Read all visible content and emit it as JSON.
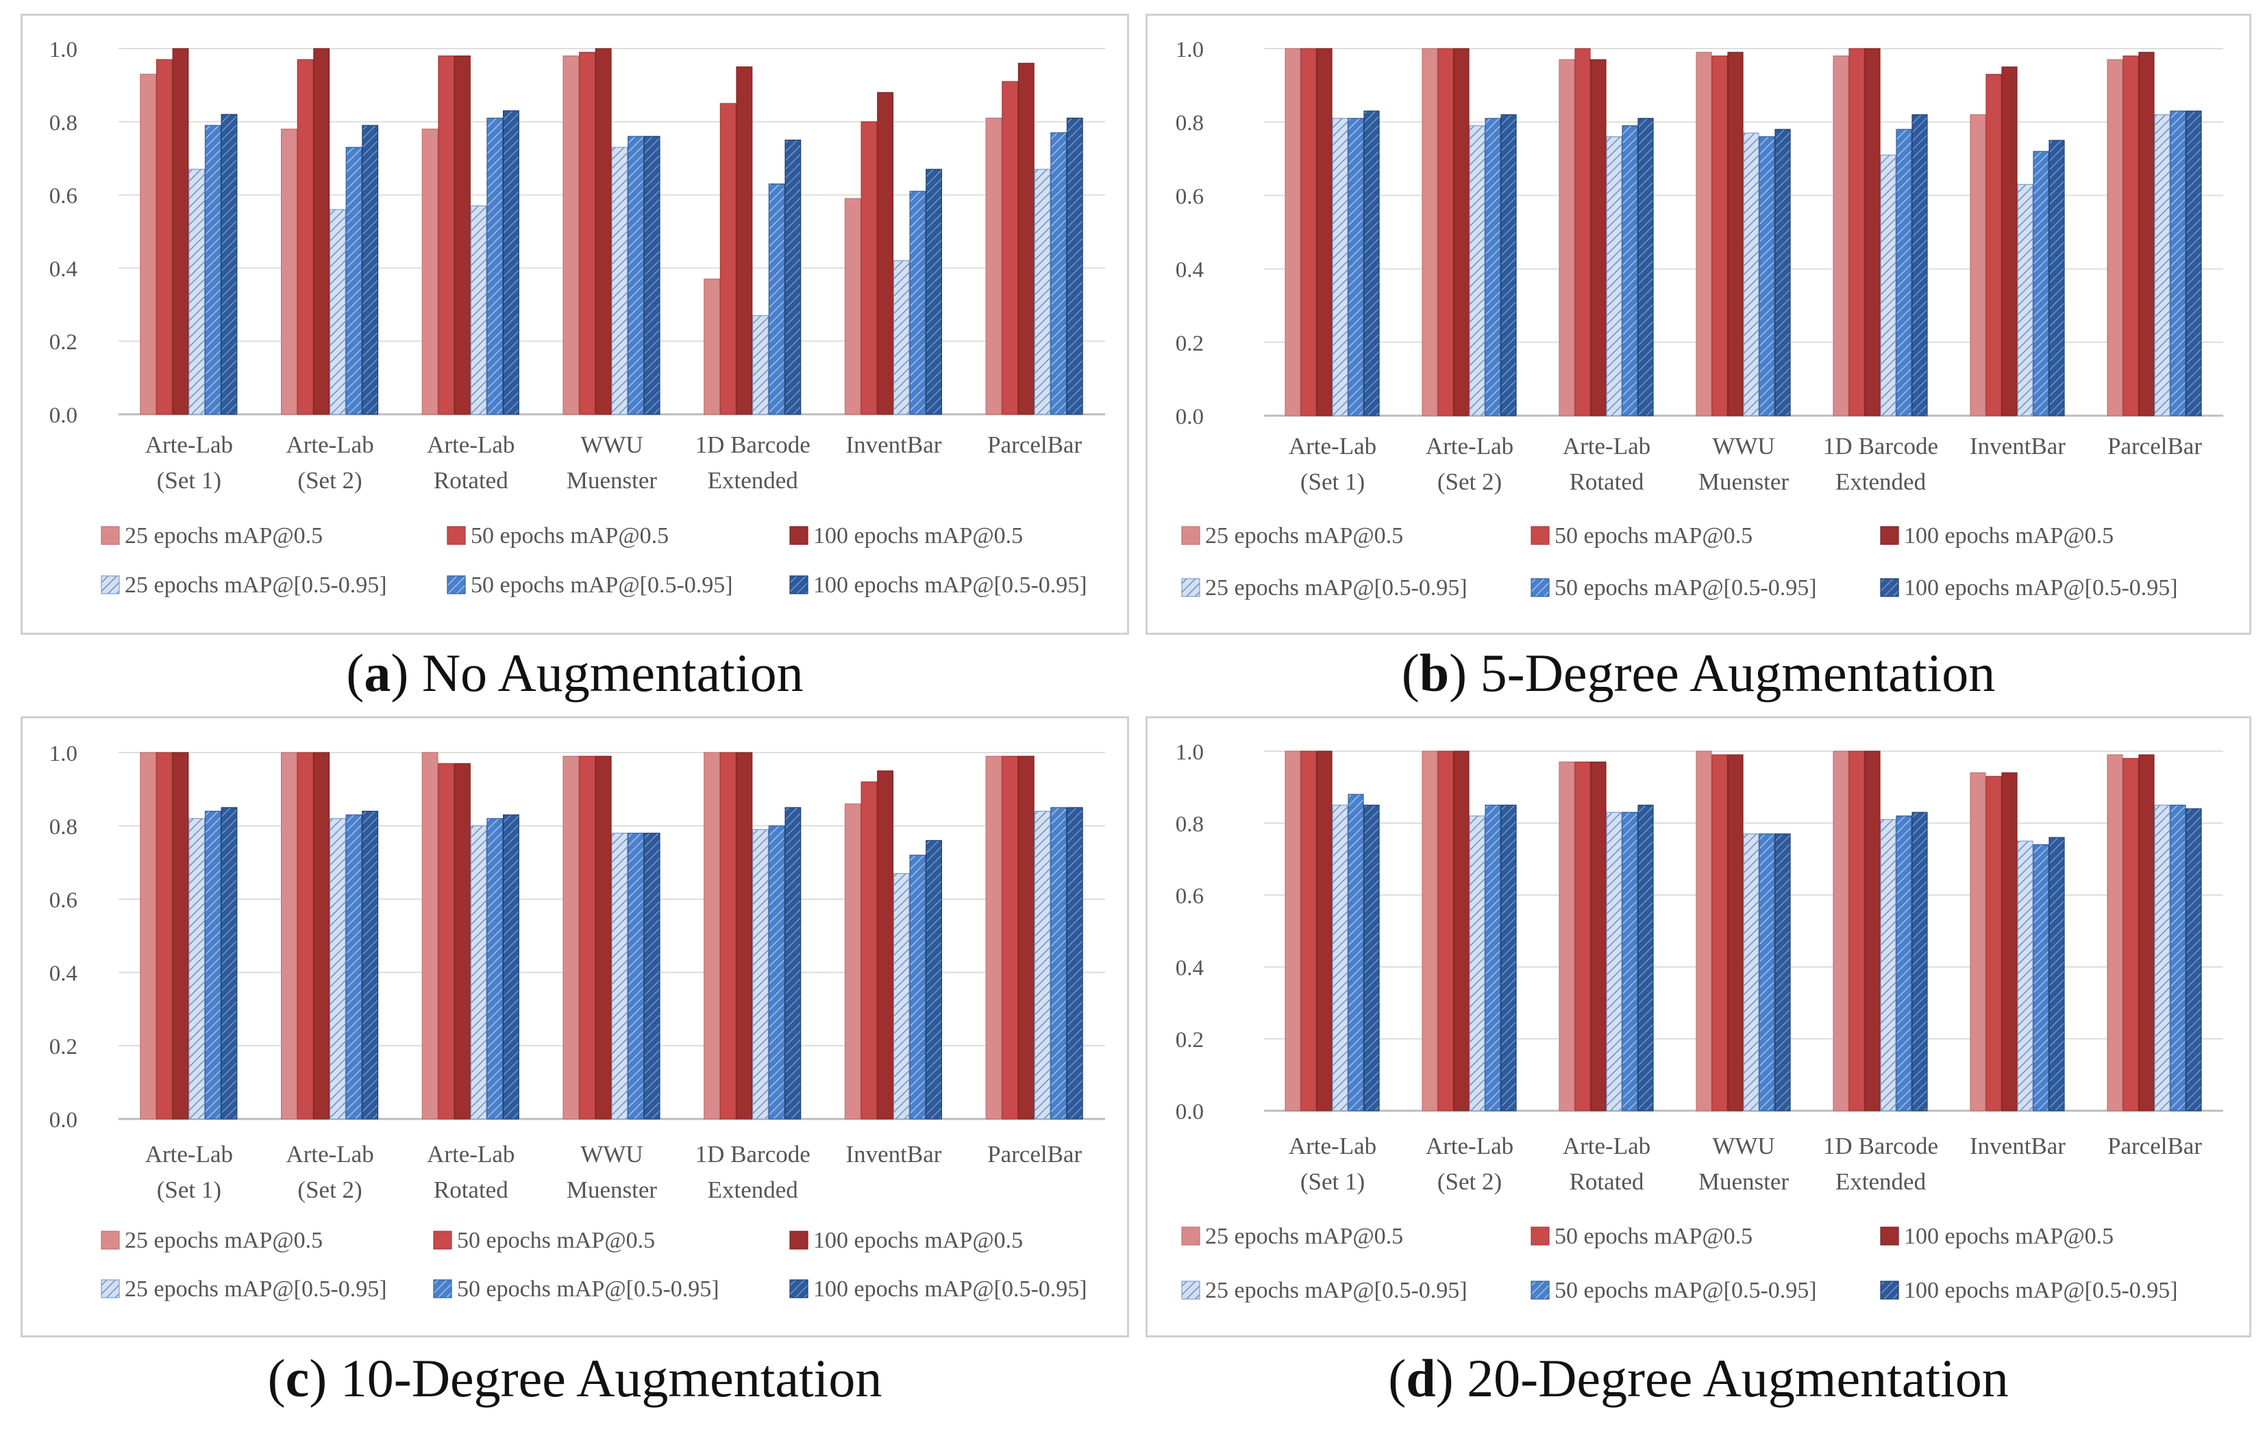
{
  "colors": {
    "s25_05": "#D98B8B",
    "s50_05": "#C84A4A",
    "s100_05": "#9E2F2F",
    "s25_095": "#BCD0EC",
    "s50_095": "#4A7FCA",
    "s100_095": "#2E5A9A"
  },
  "charts": [
    {
      "letter": "a",
      "caption": "No Augmentation",
      "chart_data": {
        "type": "bar",
        "categories": [
          [
            "Arte-Lab",
            "(Set 1)"
          ],
          [
            "Arte-Lab",
            "(Set 2)"
          ],
          [
            "Arte-Lab",
            "Rotated"
          ],
          [
            "WWU",
            "Muenster"
          ],
          [
            "1D Barcode",
            "Extended"
          ],
          [
            "InventBar"
          ],
          [
            "ParcelBar"
          ]
        ],
        "ylim": [
          0,
          1.0
        ],
        "yticks": [
          "0.0",
          "0.2",
          "0.4",
          "0.6",
          "0.8",
          "1.0"
        ],
        "series": [
          {
            "name": "25 epochs mAP@0.5",
            "values": [
              0.93,
              0.78,
              0.78,
              0.98,
              0.37,
              0.59,
              0.81
            ]
          },
          {
            "name": "50 epochs mAP@0.5",
            "values": [
              0.97,
              0.97,
              0.98,
              0.99,
              0.85,
              0.8,
              0.91
            ]
          },
          {
            "name": "100 epochs mAP@0.5",
            "values": [
              1.0,
              1.0,
              0.98,
              1.0,
              0.95,
              0.88,
              0.96
            ]
          },
          {
            "name": "25 epochs mAP@[0.5-0.95]",
            "values": [
              0.67,
              0.56,
              0.57,
              0.73,
              0.27,
              0.42,
              0.67
            ]
          },
          {
            "name": "50 epochs mAP@[0.5-0.95]",
            "values": [
              0.79,
              0.73,
              0.81,
              0.76,
              0.63,
              0.61,
              0.77
            ]
          },
          {
            "name": "100 epochs mAP@[0.5-0.95]",
            "values": [
              0.82,
              0.79,
              0.83,
              0.76,
              0.75,
              0.67,
              0.81
            ]
          }
        ]
      }
    },
    {
      "letter": "b",
      "caption": "5-Degree Augmentation",
      "chart_data": {
        "type": "bar",
        "categories": [
          [
            "Arte-Lab",
            "(Set 1)"
          ],
          [
            "Arte-Lab",
            "(Set 2)"
          ],
          [
            "Arte-Lab",
            "Rotated"
          ],
          [
            "WWU",
            "Muenster"
          ],
          [
            "1D Barcode",
            "Extended"
          ],
          [
            "InventBar"
          ],
          [
            "ParcelBar"
          ]
        ],
        "ylim": [
          0,
          1.0
        ],
        "yticks": [
          "0.0",
          "0.2",
          "0.4",
          "0.6",
          "0.8",
          "1.0"
        ],
        "series": [
          {
            "name": "25 epochs mAP@0.5",
            "values": [
              1.0,
              1.0,
              0.97,
              0.99,
              0.98,
              0.82,
              0.97
            ]
          },
          {
            "name": "50 epochs mAP@0.5",
            "values": [
              1.0,
              1.0,
              1.0,
              0.98,
              1.0,
              0.93,
              0.98
            ]
          },
          {
            "name": "100 epochs mAP@0.5",
            "values": [
              1.0,
              1.0,
              0.97,
              0.99,
              1.0,
              0.95,
              0.99
            ]
          },
          {
            "name": "25 epochs mAP@[0.5-0.95]",
            "values": [
              0.81,
              0.79,
              0.76,
              0.77,
              0.71,
              0.63,
              0.82
            ]
          },
          {
            "name": "50 epochs mAP@[0.5-0.95]",
            "values": [
              0.81,
              0.81,
              0.79,
              0.76,
              0.78,
              0.72,
              0.83
            ]
          },
          {
            "name": "100 epochs mAP@[0.5-0.95]",
            "values": [
              0.83,
              0.82,
              0.81,
              0.78,
              0.82,
              0.75,
              0.83
            ]
          }
        ]
      }
    },
    {
      "letter": "c",
      "caption": "10-Degree Augmentation",
      "chart_data": {
        "type": "bar",
        "categories": [
          [
            "Arte-Lab",
            "(Set 1)"
          ],
          [
            "Arte-Lab",
            "(Set 2)"
          ],
          [
            "Arte-Lab",
            "Rotated"
          ],
          [
            "WWU",
            "Muenster"
          ],
          [
            "1D Barcode",
            "Extended"
          ],
          [
            "InventBar"
          ],
          [
            "ParcelBar"
          ]
        ],
        "ylim": [
          0,
          1.0
        ],
        "yticks": [
          "0.0",
          "0.2",
          "0.4",
          "0.6",
          "0.8",
          "1.0"
        ],
        "series": [
          {
            "name": "25 epochs mAP@0.5",
            "values": [
              1.0,
              1.0,
              1.0,
              0.99,
              1.0,
              0.86,
              0.99
            ]
          },
          {
            "name": "50 epochs mAP@0.5",
            "values": [
              1.0,
              1.0,
              0.97,
              0.99,
              1.0,
              0.92,
              0.99
            ]
          },
          {
            "name": "100 epochs mAP@0.5",
            "values": [
              1.0,
              1.0,
              0.97,
              0.99,
              1.0,
              0.95,
              0.99
            ]
          },
          {
            "name": "25 epochs mAP@[0.5-0.95]",
            "values": [
              0.82,
              0.82,
              0.8,
              0.78,
              0.79,
              0.67,
              0.84
            ]
          },
          {
            "name": "50 epochs mAP@[0.5-0.95]",
            "values": [
              0.84,
              0.83,
              0.82,
              0.78,
              0.8,
              0.72,
              0.85
            ]
          },
          {
            "name": "100 epochs mAP@[0.5-0.95]",
            "values": [
              0.85,
              0.84,
              0.83,
              0.78,
              0.85,
              0.76,
              0.85
            ]
          }
        ]
      }
    },
    {
      "letter": "d",
      "caption": "20-Degree Augmentation",
      "chart_data": {
        "type": "bar",
        "categories": [
          [
            "Arte-Lab",
            "(Set 1)"
          ],
          [
            "Arte-Lab",
            "(Set 2)"
          ],
          [
            "Arte-Lab",
            "Rotated"
          ],
          [
            "WWU",
            "Muenster"
          ],
          [
            "1D Barcode",
            "Extended"
          ],
          [
            "InventBar"
          ],
          [
            "ParcelBar"
          ]
        ],
        "ylim": [
          0,
          1.0
        ],
        "yticks": [
          "0.0",
          "0.2",
          "0.4",
          "0.6",
          "0.8",
          "1.0"
        ],
        "series": [
          {
            "name": "25 epochs mAP@0.5",
            "values": [
              1.0,
              1.0,
              0.97,
              1.0,
              1.0,
              0.94,
              0.99
            ]
          },
          {
            "name": "50 epochs mAP@0.5",
            "values": [
              1.0,
              1.0,
              0.97,
              0.99,
              1.0,
              0.93,
              0.98
            ]
          },
          {
            "name": "100 epochs mAP@0.5",
            "values": [
              1.0,
              1.0,
              0.97,
              0.99,
              1.0,
              0.94,
              0.99
            ]
          },
          {
            "name": "25 epochs mAP@[0.5-0.95]",
            "values": [
              0.85,
              0.82,
              0.83,
              0.77,
              0.81,
              0.75,
              0.85
            ]
          },
          {
            "name": "50 epochs mAP@[0.5-0.95]",
            "values": [
              0.88,
              0.85,
              0.83,
              0.77,
              0.82,
              0.74,
              0.85
            ]
          },
          {
            "name": "100 epochs mAP@[0.5-0.95]",
            "values": [
              0.85,
              0.85,
              0.85,
              0.77,
              0.83,
              0.76,
              0.84
            ]
          }
        ]
      }
    }
  ]
}
